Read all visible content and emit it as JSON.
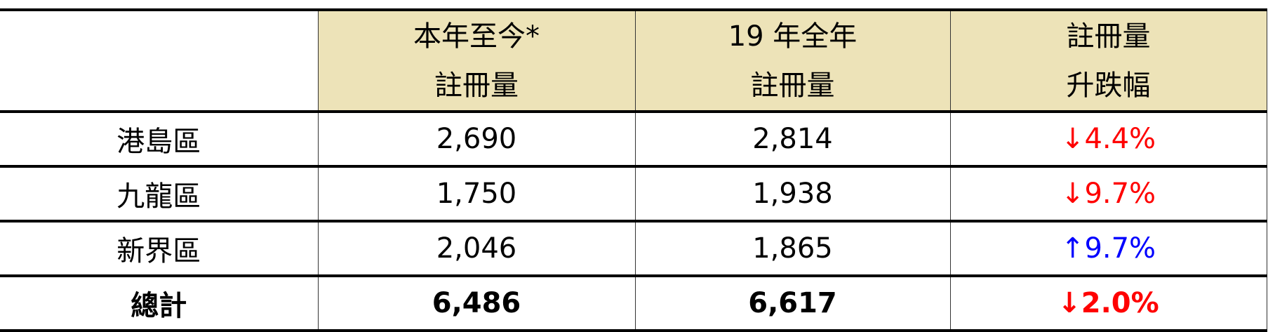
{
  "header": {
    "blank": "",
    "columns": [
      {
        "line1": "本年至今*",
        "line2": "註冊量"
      },
      {
        "line1": "19 年全年",
        "line2": "註冊量"
      },
      {
        "line1": "註冊量",
        "line2": "升跌幅"
      }
    ]
  },
  "rows": [
    {
      "district": "港島區",
      "ytd": "2,690",
      "full_year": "2,814",
      "change": "↓4.4%",
      "direction": "down"
    },
    {
      "district": "九龍區",
      "ytd": "1,750",
      "full_year": "1,938",
      "change": "↓9.7%",
      "direction": "down"
    },
    {
      "district": "新界區",
      "ytd": "2,046",
      "full_year": "1,865",
      "change": "↑9.7%",
      "direction": "up"
    },
    {
      "district": "總計",
      "ytd": "6,486",
      "full_year": "6,617",
      "change": "↓2.0%",
      "direction": "down"
    }
  ],
  "colors": {
    "header_bg": "#ede3b8",
    "down": "#ff0000",
    "up": "#0000ff"
  }
}
